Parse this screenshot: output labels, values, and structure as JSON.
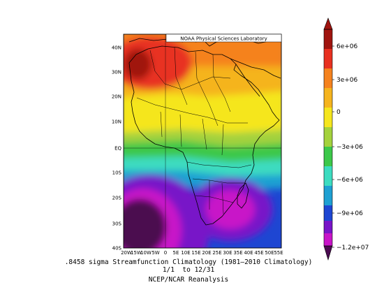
{
  "map": {
    "credit": "NOAA Physical Sciences Laboratory",
    "lat_labels": [
      "40N",
      "30N",
      "20N",
      "10N",
      "EQ",
      "10S",
      "20S",
      "30S",
      "40S"
    ],
    "lon_labels": [
      "20W",
      "15W",
      "10W",
      "5W",
      "0",
      "5E",
      "10E",
      "15E",
      "20E",
      "25E",
      "30E",
      "35E",
      "40E",
      "45E",
      "50E",
      "55E"
    ],
    "extent": {
      "lon": [
        -20,
        55
      ],
      "lat": [
        -40,
        44
      ]
    },
    "field": "streamfunction",
    "colors": {
      "max": "#a0140f",
      "red": "#e83020",
      "orange": "#f5821e",
      "gold": "#f5b41e",
      "yellow": "#f5e61e",
      "lime": "#a4d23c",
      "green": "#3cc84a",
      "aqua": "#3cdcc0",
      "teal": "#1ea0d2",
      "blue": "#1e46d2",
      "purple": "#7814c8",
      "magenta": "#c814c8",
      "dark": "#4b0a50"
    }
  },
  "colorbar": {
    "labels": [
      "6e+06",
      "3e+06",
      "0",
      "−3e+06",
      "−6e+06",
      "−9e+06",
      "−1.2e+07"
    ]
  },
  "caption": {
    "title": ".8458 sigma Streamfunction Climatology (1981–2010 Climatology)",
    "period": "1/1  to 12/31",
    "source": "NCEP/NCAR Reanalysis"
  }
}
